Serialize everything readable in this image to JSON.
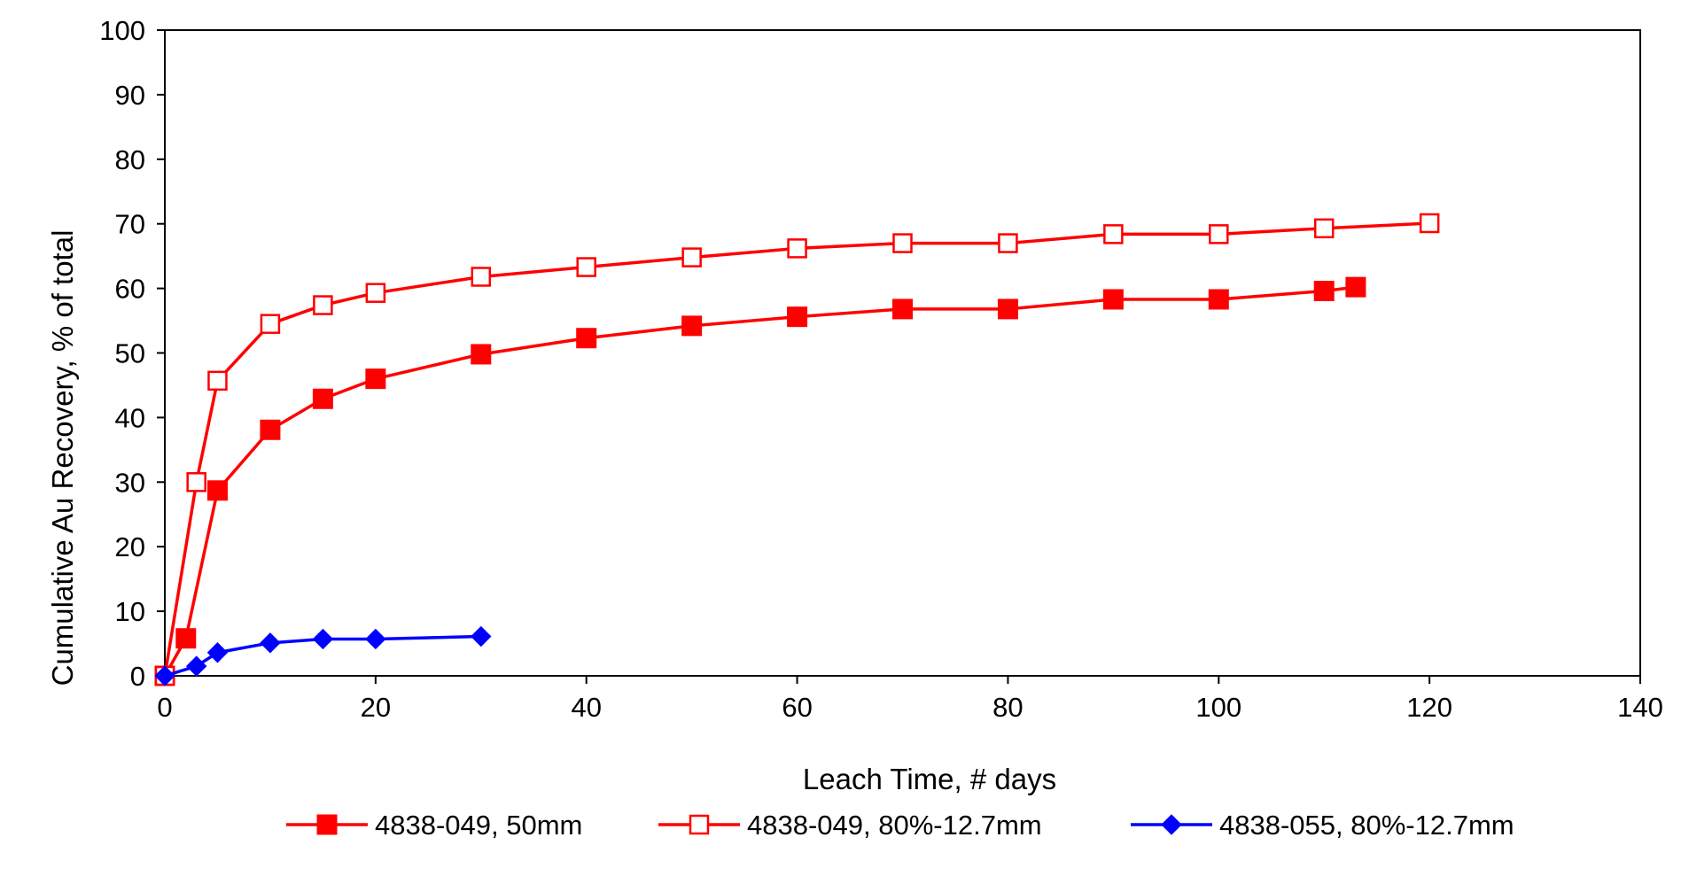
{
  "chart_data": {
    "type": "line",
    "title": "",
    "xlabel": "Leach Time, # days",
    "ylabel": "Cumulative Au Recovery, % of total",
    "xlim": [
      0,
      140
    ],
    "ylim": [
      0,
      100
    ],
    "xticks": [
      0,
      20,
      40,
      60,
      80,
      100,
      120,
      140
    ],
    "yticks": [
      0,
      10,
      20,
      30,
      40,
      50,
      60,
      70,
      80,
      90,
      100
    ],
    "grid": false,
    "legend_position": "bottom",
    "series": [
      {
        "name": "4838-049, 50mm",
        "color": "#ff0000",
        "marker": "square-filled",
        "x": [
          0,
          2,
          5,
          10,
          15,
          20,
          30,
          40,
          50,
          60,
          70,
          80,
          90,
          100,
          110,
          113
        ],
        "y": [
          0,
          5.8,
          28.7,
          38.1,
          42.9,
          46.0,
          49.8,
          52.3,
          54.2,
          55.6,
          56.8,
          56.8,
          58.3,
          58.3,
          59.6,
          60.2
        ]
      },
      {
        "name": "4838-049, 80%-12.7mm",
        "color": "#ff0000",
        "marker": "square-open",
        "x": [
          0,
          3,
          5,
          10,
          15,
          20,
          30,
          40,
          50,
          60,
          70,
          80,
          90,
          100,
          110,
          120
        ],
        "y": [
          0,
          30.0,
          45.7,
          54.5,
          57.4,
          59.3,
          61.8,
          63.3,
          64.8,
          66.2,
          67.0,
          67.0,
          68.4,
          68.4,
          69.3,
          70.1
        ]
      },
      {
        "name": "4838-055, 80%-12.7mm",
        "color": "#0000ff",
        "marker": "diamond-filled",
        "x": [
          0,
          3,
          5,
          10,
          15,
          20,
          30
        ],
        "y": [
          0,
          1.5,
          3.6,
          5.1,
          5.7,
          5.7,
          6.1
        ]
      }
    ]
  }
}
